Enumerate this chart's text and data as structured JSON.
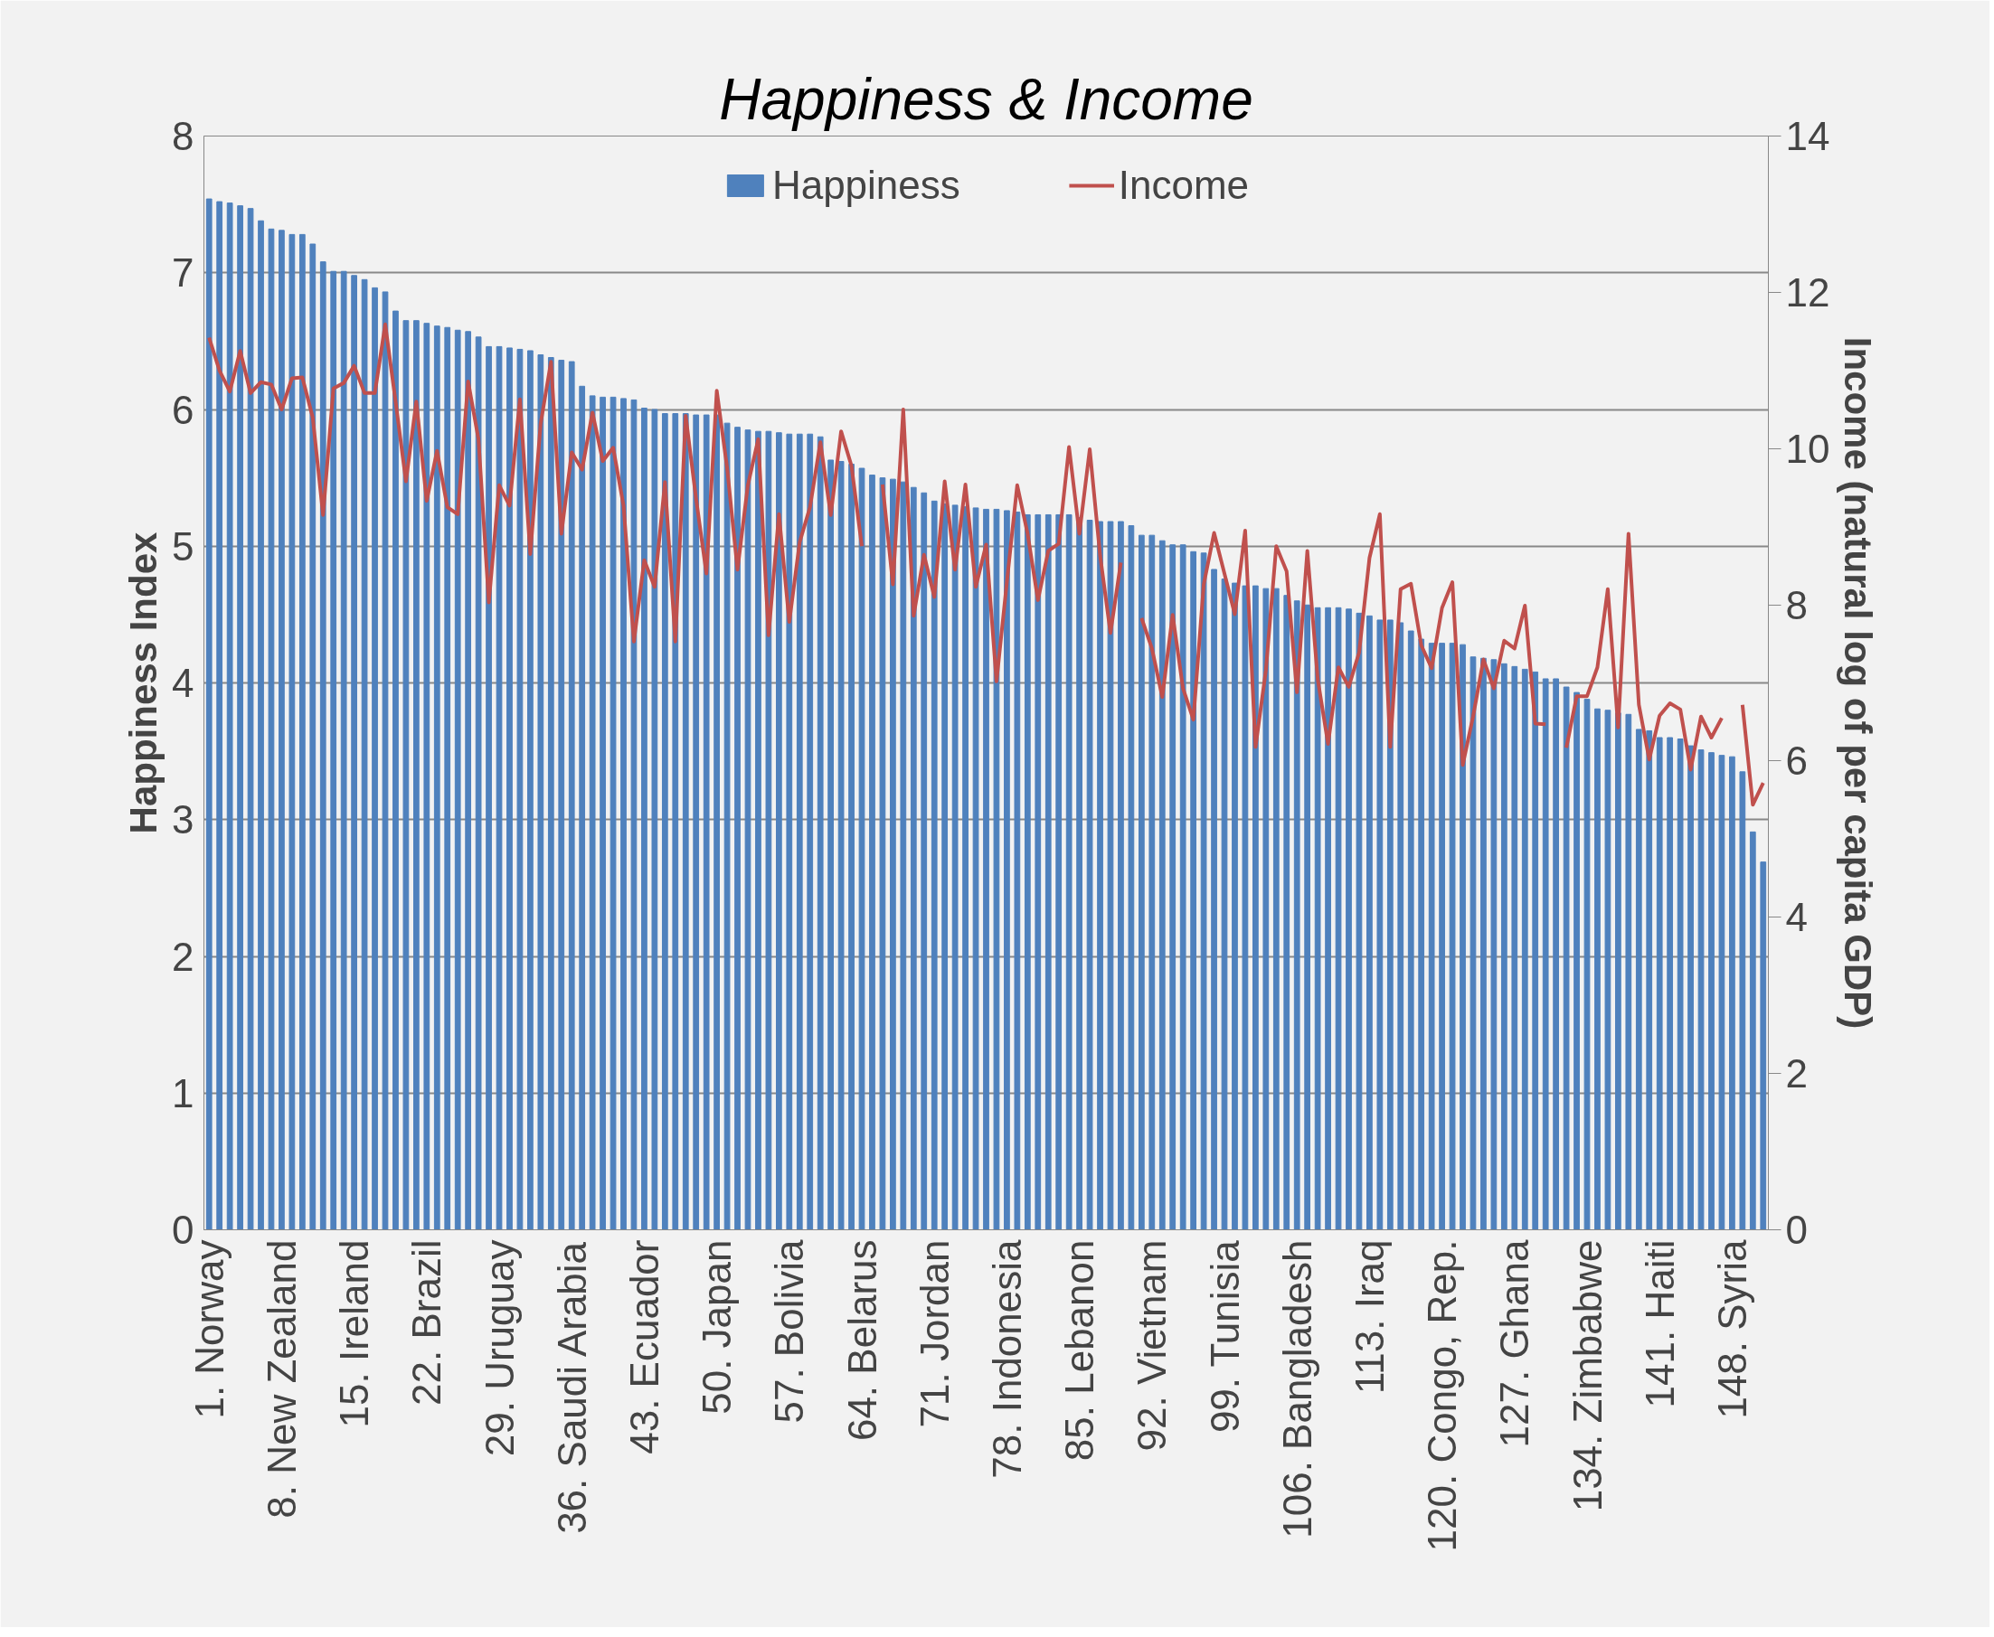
{
  "chart_data": {
    "type": "bar",
    "title": "Happiness & Income",
    "ylabel": "Happiness Index",
    "y2label": "Income (natural log of per capita GDP)",
    "categories": [
      "1. Norway",
      null,
      null,
      null,
      null,
      null,
      null,
      "8. New Zealand",
      null,
      null,
      null,
      null,
      null,
      null,
      "15. Ireland",
      null,
      null,
      null,
      null,
      null,
      null,
      "22. Brazil",
      null,
      null,
      null,
      null,
      null,
      null,
      "29. Uruguay",
      null,
      null,
      null,
      null,
      null,
      null,
      "36. Saudi Arabia",
      null,
      null,
      null,
      null,
      null,
      null,
      "43. Ecuador",
      null,
      null,
      null,
      null,
      null,
      null,
      "50. Japan",
      null,
      null,
      null,
      null,
      null,
      null,
      "57. Bolivia",
      null,
      null,
      null,
      null,
      null,
      null,
      "64. Belarus",
      null,
      null,
      null,
      null,
      null,
      null,
      "71. Jordan",
      null,
      null,
      null,
      null,
      null,
      null,
      "78. Indonesia",
      null,
      null,
      null,
      null,
      null,
      null,
      "85. Lebanon",
      null,
      null,
      null,
      null,
      null,
      null,
      "92. Vietnam",
      null,
      null,
      null,
      null,
      null,
      null,
      "99. Tunisia",
      null,
      null,
      null,
      null,
      null,
      null,
      "106. Bangladesh",
      null,
      null,
      null,
      null,
      null,
      null,
      "113. Iraq",
      null,
      null,
      null,
      null,
      null,
      null,
      "120. Congo, Rep.",
      null,
      null,
      null,
      null,
      null,
      null,
      "127. Ghana",
      null,
      null,
      null,
      null,
      null,
      null,
      "134. Zimbabwe",
      null,
      null,
      null,
      null,
      null,
      null,
      "141. Haiti",
      null,
      null,
      null,
      null,
      null,
      null,
      "148. Syria",
      null,
      null,
      null
    ],
    "series": [
      {
        "name": "Happiness",
        "color": "#4f81bd",
        "values": [
          7.54,
          7.52,
          7.51,
          7.49,
          7.47,
          7.38,
          7.32,
          7.31,
          7.28,
          7.28,
          7.21,
          7.08,
          7.01,
          7.01,
          6.98,
          6.95,
          6.89,
          6.86,
          6.72,
          6.65,
          6.65,
          6.63,
          6.61,
          6.6,
          6.58,
          6.57,
          6.53,
          6.46,
          6.46,
          6.45,
          6.44,
          6.43,
          6.4,
          6.38,
          6.36,
          6.35,
          6.17,
          6.1,
          6.09,
          6.09,
          6.08,
          6.07,
          6.01,
          6.0,
          5.97,
          5.97,
          5.97,
          5.96,
          5.96,
          5.96,
          5.9,
          5.87,
          5.85,
          5.84,
          5.84,
          5.83,
          5.82,
          5.82,
          5.82,
          5.8,
          5.63,
          5.62,
          5.6,
          5.57,
          5.52,
          5.5,
          5.49,
          5.47,
          5.43,
          5.39,
          5.33,
          5.31,
          5.3,
          5.29,
          5.28,
          5.27,
          5.27,
          5.26,
          5.25,
          5.23,
          5.23,
          5.23,
          5.23,
          5.23,
          5.21,
          5.19,
          5.18,
          5.18,
          5.18,
          5.15,
          5.08,
          5.08,
          5.04,
          5.01,
          5.01,
          4.96,
          4.95,
          4.83,
          4.76,
          4.73,
          4.71,
          4.71,
          4.69,
          4.69,
          4.64,
          4.6,
          4.57,
          4.55,
          4.55,
          4.55,
          4.54,
          4.51,
          4.49,
          4.46,
          4.46,
          4.44,
          4.38,
          4.32,
          4.29,
          4.29,
          4.29,
          4.28,
          4.19,
          4.18,
          4.17,
          4.14,
          4.12,
          4.1,
          4.08,
          4.03,
          4.03,
          3.97,
          3.93,
          3.88,
          3.81,
          3.8,
          3.78,
          3.77,
          3.66,
          3.65,
          3.6,
          3.6,
          3.59,
          3.54,
          3.51,
          3.49,
          3.47,
          3.46,
          3.35,
          2.91,
          2.69
        ]
      },
      {
        "name": "Income",
        "type": "line",
        "axis": "y2",
        "color": "#c0504d",
        "values": [
          11.42,
          11.0,
          10.73,
          11.25,
          10.71,
          10.85,
          10.82,
          10.5,
          10.9,
          10.91,
          10.4,
          9.15,
          10.77,
          10.84,
          11.06,
          10.71,
          10.71,
          11.59,
          10.6,
          9.58,
          10.6,
          9.33,
          9.97,
          9.25,
          9.16,
          10.86,
          10.12,
          8.03,
          9.53,
          9.27,
          10.63,
          8.65,
          10.32,
          11.11,
          8.91,
          9.95,
          9.73,
          10.46,
          9.84,
          10.01,
          9.27,
          7.53,
          8.57,
          8.23,
          9.57,
          7.53,
          10.42,
          9.36,
          8.4,
          10.74,
          9.75,
          8.45,
          9.53,
          10.12,
          7.61,
          9.16,
          7.78,
          8.8,
          9.25,
          10.08,
          9.15,
          10.22,
          9.78,
          8.75,
          null,
          9.54,
          8.26,
          10.5,
          7.86,
          8.64,
          8.1,
          9.58,
          8.45,
          9.54,
          8.23,
          8.77,
          7.02,
          8.29,
          9.53,
          8.91,
          8.06,
          8.69,
          8.78,
          10.02,
          8.91,
          9.99,
          8.63,
          7.64,
          8.54,
          null,
          7.83,
          7.44,
          6.82,
          7.87,
          6.93,
          6.53,
          8.26,
          8.92,
          8.4,
          7.88,
          8.95,
          6.18,
          7.16,
          8.75,
          8.43,
          6.88,
          8.69,
          7.05,
          6.22,
          7.2,
          6.95,
          7.39,
          8.6,
          9.16,
          6.18,
          8.2,
          8.27,
          7.48,
          7.19,
          7.96,
          8.29,
          5.95,
          6.57,
          7.3,
          6.93,
          7.54,
          7.44,
          7.99,
          6.48,
          6.47,
          null,
          6.17,
          6.83,
          6.83,
          7.2,
          8.2,
          6.43,
          8.91,
          6.72,
          6.02,
          6.58,
          6.74,
          6.66,
          5.89,
          6.57,
          6.3,
          6.55,
          null,
          6.72,
          5.44,
          5.72
        ]
      }
    ],
    "ylim": [
      0,
      8
    ],
    "yticks": [
      0,
      1,
      2,
      3,
      4,
      5,
      6,
      7,
      8
    ],
    "y2lim": [
      0,
      14
    ],
    "y2ticks": [
      0,
      2,
      4,
      6,
      8,
      10,
      12,
      14
    ],
    "grid": "y",
    "legend": "top",
    "line_style": "solid",
    "marker": "none"
  }
}
